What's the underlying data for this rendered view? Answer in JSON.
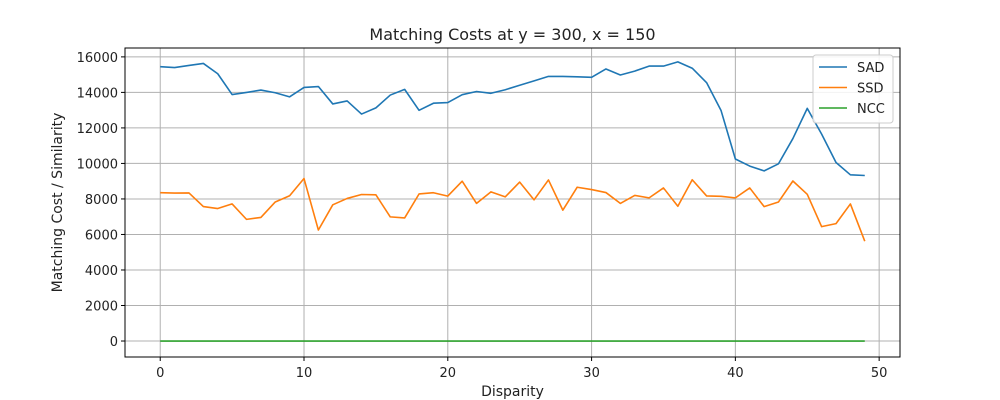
{
  "chart_data": {
    "type": "line",
    "title": "Matching Costs at y = 300, x = 150",
    "xlabel": "Disparity",
    "ylabel": "Matching Cost / Similarity",
    "xlim": [
      -2.45,
      51.45
    ],
    "ylim": [
      -900,
      16500
    ],
    "xticks": [
      0,
      10,
      20,
      30,
      40,
      50
    ],
    "yticks": [
      0,
      2000,
      4000,
      6000,
      8000,
      10000,
      12000,
      14000,
      16000
    ],
    "grid": true,
    "legend_position": "top-right",
    "x": [
      0,
      1,
      2,
      3,
      4,
      5,
      6,
      7,
      8,
      9,
      10,
      11,
      12,
      13,
      14,
      15,
      16,
      17,
      18,
      19,
      20,
      21,
      22,
      23,
      24,
      25,
      26,
      27,
      28,
      29,
      30,
      31,
      32,
      33,
      34,
      35,
      36,
      37,
      38,
      39,
      40,
      41,
      42,
      43,
      44,
      45,
      46,
      47,
      48,
      49
    ],
    "series": [
      {
        "name": "SAD",
        "color": "#1f77b4",
        "values": [
          15450,
          15400,
          15520,
          15630,
          15050,
          13880,
          14000,
          14130,
          13980,
          13750,
          14280,
          14330,
          13350,
          13520,
          12780,
          13130,
          13850,
          14170,
          12990,
          13390,
          13430,
          13870,
          14050,
          13950,
          14150,
          14400,
          14650,
          14900,
          14900,
          14880,
          14850,
          15320,
          14980,
          15200,
          15480,
          15480,
          15720,
          15360,
          14550,
          12990,
          10250,
          9850,
          9580,
          9980,
          11400,
          13100,
          11650,
          10050,
          9360,
          9320
        ]
      },
      {
        "name": "SSD",
        "color": "#ff7f0e",
        "values": [
          8350,
          8330,
          8340,
          7570,
          7460,
          7720,
          6850,
          6960,
          7830,
          8180,
          9150,
          6250,
          7670,
          8030,
          8250,
          8230,
          6990,
          6930,
          8280,
          8350,
          8160,
          9000,
          7750,
          8400,
          8120,
          8950,
          7950,
          9070,
          7370,
          8660,
          8530,
          8360,
          7750,
          8200,
          8060,
          8620,
          7590,
          9080,
          8170,
          8150,
          8060,
          8620,
          7570,
          7830,
          9010,
          8260,
          6440,
          6610,
          7720,
          5620
        ]
      },
      {
        "name": "NCC",
        "color": "#2ca02c",
        "values": [
          0,
          0,
          0,
          0,
          0,
          0,
          0,
          0,
          0,
          0,
          0,
          0,
          0,
          0,
          0,
          0,
          0,
          0,
          0,
          0,
          0,
          0,
          0,
          0,
          0,
          0,
          0,
          0,
          0,
          0,
          0,
          0,
          0,
          0,
          0,
          0,
          0,
          0,
          0,
          0,
          0,
          0,
          0,
          0,
          0,
          0,
          0,
          0,
          0,
          0
        ]
      }
    ]
  }
}
